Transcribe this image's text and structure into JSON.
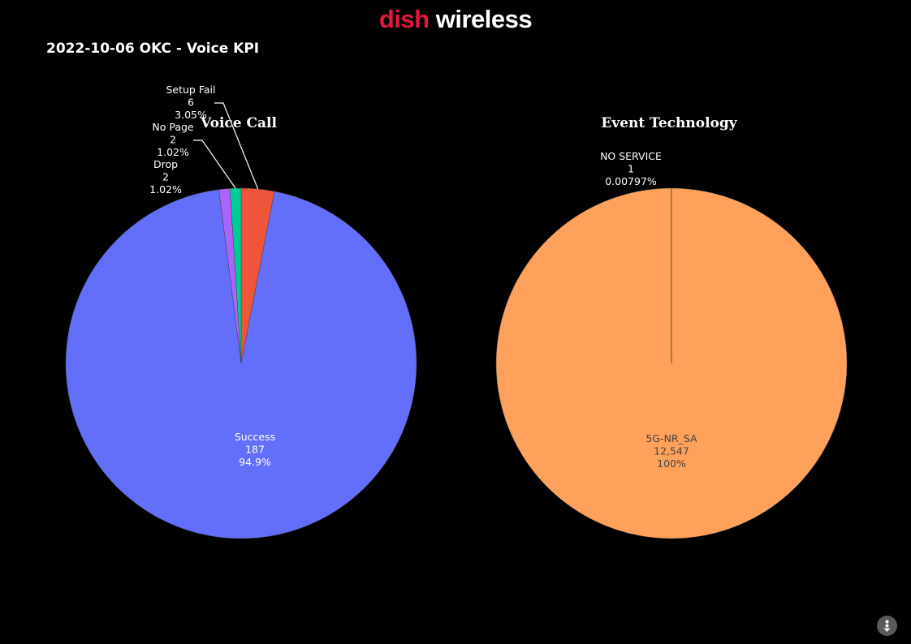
{
  "logo": {
    "part1": "dish",
    "part2": "wireless"
  },
  "page_title": "2022-10-06 OKC - Voice KPI",
  "colors": {
    "background": "#000000",
    "success": "#636efa",
    "drop": "#ab63fa",
    "no_page": "#00cc96",
    "setup_fail": "#ef553b",
    "nr_sa": "#ffa15a",
    "no_service": "#ffa15a",
    "brand_red": "#e4173c"
  },
  "chart_data": [
    {
      "type": "pie",
      "title": "Voice Call",
      "sort": "clockwise-from-top",
      "slices": [
        {
          "label": "Setup Fail",
          "value": 6,
          "percent": "3.05%",
          "value_text": "6",
          "color": "#ef553b"
        },
        {
          "label": "Success",
          "value": 187,
          "percent": "94.9%",
          "value_text": "187",
          "color": "#636efa"
        },
        {
          "label": "Drop",
          "value": 2,
          "percent": "1.02%",
          "value_text": "2",
          "color": "#ab63fa"
        },
        {
          "label": "No Page",
          "value": 2,
          "percent": "1.02%",
          "value_text": "2",
          "color": "#00cc96"
        }
      ]
    },
    {
      "type": "pie",
      "title": "Event Technology",
      "slices": [
        {
          "label": "5G-NR_SA",
          "value": 12547,
          "percent": "100%",
          "value_text": "12,547",
          "color": "#ffa15a"
        },
        {
          "label": "NO SERVICE",
          "value": 1,
          "percent": "0.00797%",
          "value_text": "1",
          "color": "#ffa15a"
        }
      ]
    }
  ],
  "modebar": {
    "icon": "plotly-modebar-icon"
  }
}
